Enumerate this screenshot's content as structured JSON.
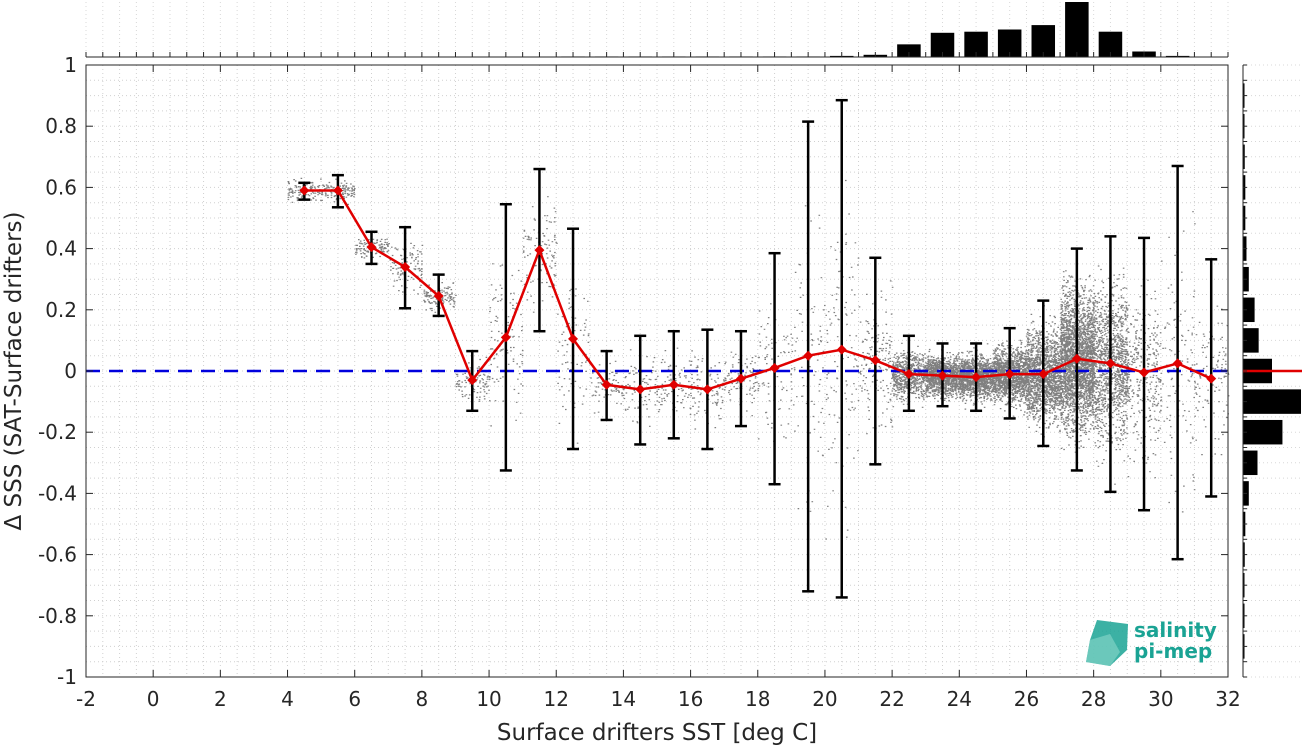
{
  "chart_data": {
    "type": "scatter",
    "xlabel": "Surface drifters SST [deg C]",
    "ylabel": "Δ SSS (SAT-Surface drifters)",
    "xlim": [
      -2,
      32
    ],
    "ylim": [
      -1,
      1
    ],
    "x_ticks": [
      "-2",
      "0",
      "2",
      "4",
      "6",
      "8",
      "10",
      "12",
      "14",
      "16",
      "18",
      "20",
      "22",
      "24",
      "26",
      "28",
      "30",
      "32"
    ],
    "y_ticks": [
      "-1",
      "-0.8",
      "-0.6",
      "-0.4",
      "-0.2",
      "0",
      "0.2",
      "0.4",
      "0.6",
      "0.8",
      "1"
    ],
    "grid": true,
    "colors": {
      "scatter": "#808080",
      "mean_line": "#e00000",
      "errorbar": "#000000",
      "zero_line": "#0000dd",
      "histogram": "#000000",
      "logo": "#1aa394"
    },
    "binned_mean": {
      "x": [
        4.5,
        5.5,
        6.5,
        7.5,
        8.5,
        9.5,
        10.5,
        11.5,
        12.5,
        13.5,
        14.5,
        15.5,
        16.5,
        17.5,
        18.5,
        19.5,
        20.5,
        21.5,
        22.5,
        23.5,
        24.5,
        25.5,
        26.5,
        27.5,
        28.5,
        29.5,
        30.5,
        31.5
      ],
      "mean": [
        0.59,
        0.59,
        0.405,
        0.34,
        0.245,
        -0.03,
        0.11,
        0.395,
        0.105,
        -0.045,
        -0.06,
        -0.045,
        -0.06,
        -0.025,
        0.01,
        0.05,
        0.07,
        0.035,
        -0.01,
        -0.015,
        -0.02,
        -0.01,
        -0.01,
        0.04,
        0.025,
        -0.005,
        0.025,
        -0.025
      ],
      "upper": [
        0.615,
        0.64,
        0.455,
        0.47,
        0.315,
        0.065,
        0.545,
        0.66,
        0.465,
        0.065,
        0.115,
        0.13,
        0.135,
        0.13,
        0.385,
        0.815,
        0.885,
        0.37,
        0.115,
        0.09,
        0.09,
        0.14,
        0.23,
        0.4,
        0.44,
        0.435,
        0.67,
        0.365
      ],
      "lower": [
        0.56,
        0.535,
        0.35,
        0.205,
        0.18,
        -0.13,
        -0.325,
        0.13,
        -0.255,
        -0.16,
        -0.24,
        -0.22,
        -0.255,
        -0.18,
        -0.37,
        -0.72,
        -0.74,
        -0.305,
        -0.13,
        -0.115,
        -0.13,
        -0.155,
        -0.245,
        -0.325,
        -0.395,
        -0.455,
        -0.615,
        -0.41
      ]
    },
    "zero_line": 0,
    "x_histogram": {
      "bin_centers": [
        12.5,
        13.5,
        14.5,
        15.5,
        16.5,
        17.5,
        18.5,
        19.5,
        20.5,
        21.5,
        22.5,
        23.5,
        24.5,
        25.5,
        26.5,
        27.5,
        28.5,
        29.5,
        30.5
      ],
      "relative_counts": [
        0.01,
        0.01,
        0.01,
        0.01,
        0.01,
        0.01,
        0.01,
        0.01,
        0.02,
        0.04,
        0.23,
        0.44,
        0.46,
        0.5,
        0.58,
        1.0,
        0.46,
        0.1,
        0.02
      ]
    },
    "y_histogram": {
      "bin_centers": [
        0.9,
        0.8,
        0.7,
        0.6,
        0.5,
        0.4,
        0.3,
        0.2,
        0.1,
        0.0,
        -0.1,
        -0.2,
        -0.3,
        -0.4,
        -0.5,
        -0.6,
        -0.7,
        -0.8,
        -0.9
      ],
      "relative_counts": [
        0.02,
        0.02,
        0.03,
        0.04,
        0.04,
        0.06,
        0.1,
        0.2,
        0.27,
        0.5,
        1.0,
        0.68,
        0.25,
        0.1,
        0.04,
        0.03,
        0.02,
        0.02,
        0.01
      ],
      "mean_line": 0
    },
    "logo": {
      "line1": "salinity",
      "line2": "pi-mep"
    }
  }
}
